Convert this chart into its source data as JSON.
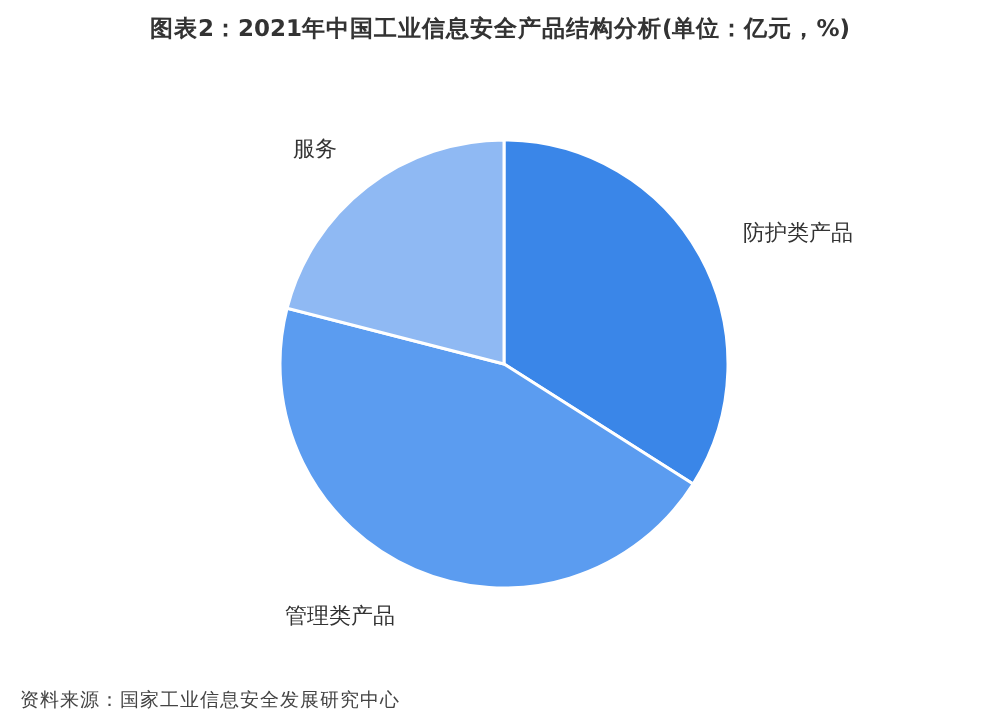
{
  "chart_data": {
    "type": "pie",
    "title": "图表2：2021年中国工业信息安全产品结构分析(单位：亿元，%)",
    "categories": [
      "防护类产品",
      "管理类产品",
      "服务"
    ],
    "values": [
      34,
      45,
      21
    ],
    "colors": [
      "#3a86e8",
      "#5b9cf0",
      "#8fb9f3"
    ],
    "annotations": [
      "资料来源：国家工业信息安全发展研究中心"
    ]
  }
}
